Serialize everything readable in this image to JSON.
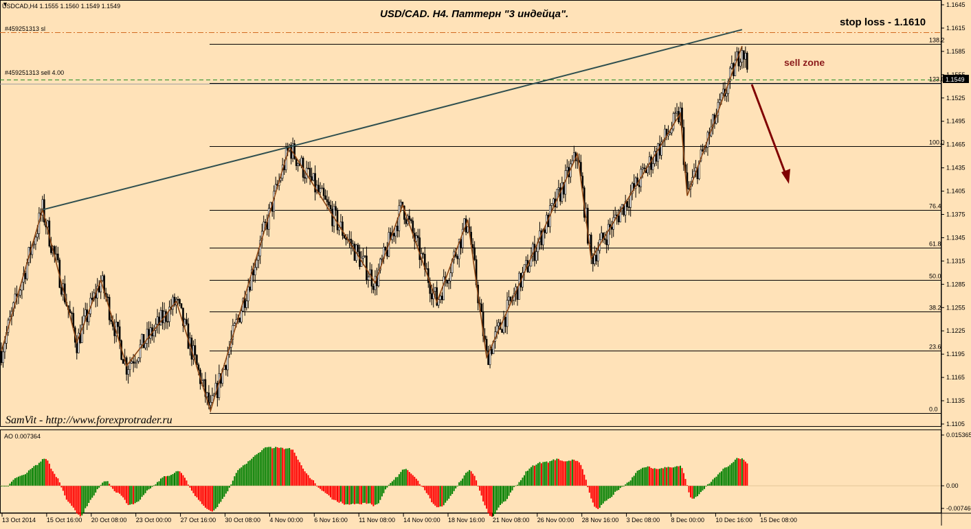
{
  "chart_info": {
    "symbol_line": "USDCAD,H4  1.1555 1.1560 1.1549 1.1549",
    "title": "USD/CAD. H4. Паттерн \"3 индейца\".",
    "stop_loss_label": "stop loss - 1.1610",
    "sell_zone_label": "sell zone",
    "signature": "SamVit - http://www.forexprotrader.ru",
    "sl_order_label": "#459251313 sl",
    "sell_order_label": "#459251313 sell 4.00",
    "current_price_tag": "1.1549",
    "ao_label": "AO 0.007364"
  },
  "colors": {
    "background": "#FFE2B8",
    "bull_bar": "#FFFFFF",
    "bear_bar": "#000000",
    "zigzag": "#8B4513",
    "trendline": "#2F4F4F",
    "sl_line": "#D2691E",
    "sell_line": "#228B22",
    "arrow": "#800000",
    "ao_up": "#008000",
    "ao_down": "#FF0000"
  },
  "chart_data": {
    "type": "candlestick",
    "price_axis_ticks": [
      "1.1645",
      "1.1615",
      "1.1585",
      "1.1555",
      "1.1525",
      "1.1495",
      "1.1465",
      "1.1435",
      "1.1405",
      "1.1375",
      "1.1345",
      "1.1315",
      "1.1285",
      "1.1255",
      "1.1225",
      "1.1195",
      "1.1165",
      "1.1135",
      "1.1105"
    ],
    "time_axis_ticks": [
      "13 Oct 2014",
      "15 Oct 16:00",
      "20 Oct 08:00",
      "23 Oct 00:00",
      "27 Oct 16:00",
      "30 Oct 08:00",
      "4 Nov 00:00",
      "6 Nov 16:00",
      "11 Nov 08:00",
      "14 Nov 00:00",
      "18 Nov 16:00",
      "21 Nov 08:00",
      "26 Nov 00:00",
      "28 Nov 16:00",
      "3 Dec 08:00",
      "8 Dec 00:00",
      "10 Dec 16:00",
      "15 Dec 08:00"
    ],
    "fib_levels": [
      {
        "label": "138.2",
        "price": 1.1595
      },
      {
        "label": "123.6",
        "price": 1.1544
      },
      {
        "label": "100.0",
        "price": 1.1463
      },
      {
        "label": "76.4",
        "price": 1.1381
      },
      {
        "label": "61.8",
        "price": 1.1332
      },
      {
        "label": "50.0",
        "price": 1.1291
      },
      {
        "label": "38.2",
        "price": 1.125
      },
      {
        "label": "23.6",
        "price": 1.12
      },
      {
        "label": "0.0",
        "price": 1.1119
      }
    ],
    "stop_loss_price": 1.161,
    "sell_price": 1.1549,
    "current_price": 1.1549,
    "zigzag": [
      {
        "bar": 0,
        "price": 1.1199
      },
      {
        "bar": 24,
        "price": 1.1381
      },
      {
        "bar": 44,
        "price": 1.121
      },
      {
        "bar": 58,
        "price": 1.129
      },
      {
        "bar": 73,
        "price": 1.118
      },
      {
        "bar": 102,
        "price": 1.1263
      },
      {
        "bar": 122,
        "price": 1.1122
      },
      {
        "bar": 168,
        "price": 1.1462
      },
      {
        "bar": 218,
        "price": 1.1287
      },
      {
        "bar": 234,
        "price": 1.1387
      },
      {
        "bar": 254,
        "price": 1.1262
      },
      {
        "bar": 272,
        "price": 1.1368
      },
      {
        "bar": 283,
        "price": 1.1191
      },
      {
        "bar": 336,
        "price": 1.1453
      },
      {
        "bar": 344,
        "price": 1.1318
      },
      {
        "bar": 396,
        "price": 1.1505
      },
      {
        "bar": 400,
        "price": 1.1399
      },
      {
        "bar": 432,
        "price": 1.1592
      }
    ],
    "trendline": [
      {
        "bar": 24,
        "price": 1.1381
      },
      {
        "bar": 168,
        "price": 1.1462
      },
      {
        "bar": 432,
        "price": 1.1613
      }
    ],
    "ao_axis_ticks": [
      "0.015365",
      "0.00",
      "-0.007460"
    ]
  }
}
